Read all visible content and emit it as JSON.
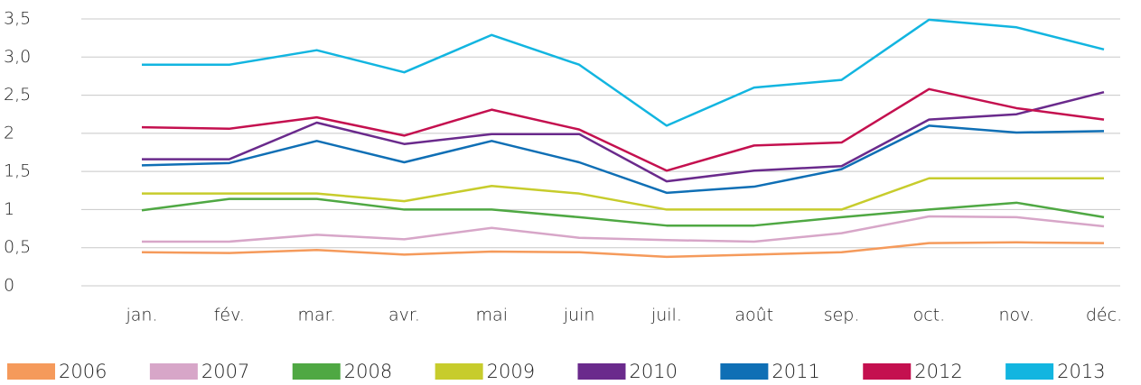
{
  "chart_data": {
    "type": "line",
    "categories": [
      "jan.",
      "fév.",
      "mar.",
      "avr.",
      "mai",
      "juin",
      "juil.",
      "août",
      "sep.",
      "oct.",
      "nov.",
      "déc."
    ],
    "series": [
      {
        "name": "2006",
        "color": "#f59a5b",
        "values": [
          0.44,
          0.43,
          0.47,
          0.41,
          0.45,
          0.44,
          0.38,
          0.41,
          0.44,
          0.56,
          0.57,
          0.56
        ]
      },
      {
        "name": "2007",
        "color": "#d7a6c8",
        "values": [
          0.58,
          0.58,
          0.67,
          0.61,
          0.76,
          0.63,
          0.6,
          0.58,
          0.69,
          0.91,
          0.9,
          0.78
        ]
      },
      {
        "name": "2008",
        "color": "#4fa843",
        "values": [
          0.99,
          1.14,
          1.14,
          1.0,
          1.0,
          0.9,
          0.79,
          0.79,
          0.9,
          1.0,
          1.09,
          0.9
        ]
      },
      {
        "name": "2009",
        "color": "#c7cc2c",
        "values": [
          1.21,
          1.21,
          1.21,
          1.11,
          1.31,
          1.21,
          1.0,
          1.0,
          1.0,
          1.41,
          1.41,
          1.41
        ]
      },
      {
        "name": "2010",
        "color": "#6a2a8c",
        "values": [
          1.66,
          1.66,
          2.14,
          1.86,
          1.99,
          1.99,
          1.37,
          1.51,
          1.57,
          2.18,
          2.25,
          2.54
        ]
      },
      {
        "name": "2011",
        "color": "#0f6fb5",
        "values": [
          1.58,
          1.61,
          1.9,
          1.62,
          1.9,
          1.62,
          1.22,
          1.3,
          1.53,
          2.1,
          2.01,
          2.03
        ]
      },
      {
        "name": "2012",
        "color": "#c4104f",
        "values": [
          2.08,
          2.06,
          2.21,
          1.97,
          2.31,
          2.05,
          1.51,
          1.84,
          1.88,
          2.58,
          2.33,
          2.18
        ]
      },
      {
        "name": "2013",
        "color": "#12b5e0",
        "values": [
          2.9,
          2.9,
          3.09,
          2.8,
          3.29,
          2.9,
          2.1,
          2.6,
          2.7,
          3.49,
          3.39,
          3.1
        ]
      }
    ],
    "ylim": [
      0,
      3.5
    ],
    "yticks": [
      0,
      {
        "value": 0.5,
        "label": "0,5"
      },
      1,
      {
        "value": 1.5,
        "label": "1,5"
      },
      2,
      {
        "value": 2.5,
        "label": "2,5"
      },
      {
        "value": 3,
        "label": "3,0"
      },
      {
        "value": 3.5,
        "label": "3,5"
      }
    ],
    "grid": true,
    "legend": "bottom"
  }
}
